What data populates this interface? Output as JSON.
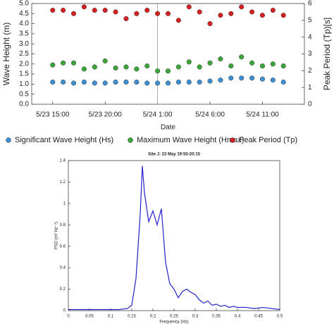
{
  "chart_data": [
    {
      "type": "scatter",
      "xlabel": "Date",
      "ylabel": "Wave Height (m)",
      "y2label": "Peak Period (Tp)[s]",
      "x": [
        15,
        16,
        17,
        18,
        19,
        20,
        21,
        22,
        23,
        24,
        25,
        26,
        27,
        28,
        29,
        30,
        31,
        32,
        33,
        34,
        35,
        36,
        37
      ],
      "xlim": [
        13,
        39
      ],
      "xticks": [
        {
          "value": 15,
          "label": "5/23 15:00"
        },
        {
          "value": 20,
          "label": "5/23 20:00"
        },
        {
          "value": 25,
          "label": "5/24 1:00"
        },
        {
          "value": 30,
          "label": "5/24 6:00"
        },
        {
          "value": 35,
          "label": "5/24 11:00"
        }
      ],
      "vline": 25,
      "ylim": [
        0,
        5
      ],
      "yticks": [
        {
          "value": 0,
          "label": "0.0"
        },
        0.5,
        {
          "value": 1,
          "label": "1.0"
        },
        1.5,
        {
          "value": 2,
          "label": "2.0"
        },
        2.5,
        {
          "value": 3,
          "label": "3.0"
        },
        3.5,
        {
          "value": 4,
          "label": "4.0"
        },
        4.5,
        {
          "value": 5,
          "label": "5.0"
        }
      ],
      "y2lim": [
        0,
        6
      ],
      "y2ticks": [
        0,
        1,
        2,
        3,
        4,
        5,
        6
      ],
      "legend": "bottom",
      "series": [
        {
          "name": "Significant Wave Height (Hs)",
          "color": "#3d8fd1",
          "values": [
            1.1,
            1.1,
            1.05,
            1.1,
            1.05,
            1.05,
            1.1,
            1.1,
            1.1,
            1.05,
            1.05,
            1.05,
            1.1,
            1.1,
            1.1,
            1.15,
            1.2,
            1.3,
            1.3,
            1.3,
            1.25,
            1.2,
            1.1
          ]
        },
        {
          "name": "Maximum Wave Height (Hmax)",
          "color": "#3aa63a",
          "values": [
            1.95,
            2.05,
            2.05,
            1.75,
            1.85,
            2.15,
            1.8,
            1.85,
            1.75,
            1.9,
            1.65,
            1.65,
            1.85,
            2.1,
            1.85,
            2.05,
            2.25,
            1.9,
            2.35,
            2.05,
            1.9,
            2.0,
            1.9
          ]
        },
        {
          "name": "Peak Period (Tp)",
          "color": "#d62020",
          "axis": "y2",
          "values": [
            5.6,
            5.6,
            5.4,
            5.8,
            5.6,
            5.6,
            5.5,
            5.1,
            5.4,
            5.6,
            5.4,
            5.4,
            5.0,
            5.8,
            5.5,
            4.8,
            5.3,
            5.4,
            5.8,
            5.5,
            5.3,
            5.6,
            5.3
          ]
        }
      ]
    },
    {
      "type": "line",
      "title": "Site J:  23 May 19:50-20:15",
      "xlabel": "Frequency (Hz)",
      "ylabel": "PSD (m² Hz⁻¹)",
      "x": [
        0,
        0.02,
        0.04,
        0.06,
        0.08,
        0.1,
        0.12,
        0.14,
        0.15,
        0.16,
        0.17,
        0.175,
        0.18,
        0.19,
        0.2,
        0.21,
        0.22,
        0.23,
        0.24,
        0.25,
        0.26,
        0.27,
        0.28,
        0.29,
        0.3,
        0.31,
        0.32,
        0.33,
        0.34,
        0.35,
        0.36,
        0.37,
        0.38,
        0.39,
        0.4,
        0.42,
        0.44,
        0.46,
        0.48,
        0.5
      ],
      "values": [
        0.01,
        0.01,
        0.01,
        0.01,
        0.01,
        0.01,
        0.01,
        0.02,
        0.05,
        0.3,
        0.9,
        1.35,
        1.1,
        0.83,
        0.93,
        0.8,
        0.95,
        0.45,
        0.25,
        0.2,
        0.12,
        0.18,
        0.2,
        0.17,
        0.15,
        0.1,
        0.07,
        0.09,
        0.05,
        0.06,
        0.04,
        0.05,
        0.03,
        0.04,
        0.03,
        0.03,
        0.02,
        0.03,
        0.02,
        0.01
      ],
      "color": "#2222cc",
      "xlim": [
        0,
        0.5
      ],
      "xticks": [
        0,
        0.05,
        0.1,
        0.15,
        0.2,
        0.25,
        0.3,
        0.35,
        0.4,
        0.45,
        0.5
      ],
      "ylim": [
        0,
        1.4
      ],
      "yticks": [
        0,
        0.2,
        0.4,
        0.6,
        0.8,
        1,
        1.2,
        1.4
      ]
    }
  ]
}
